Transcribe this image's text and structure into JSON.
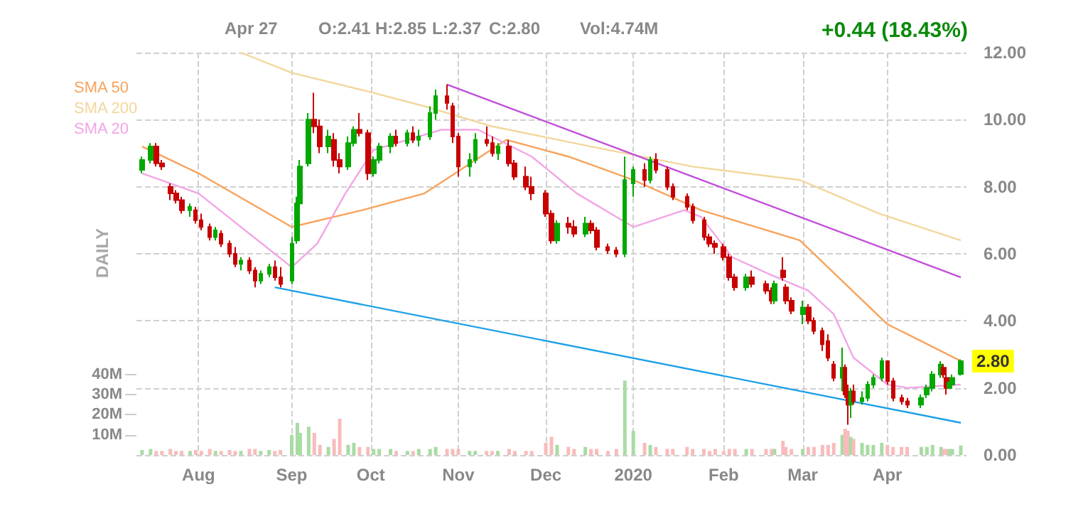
{
  "chart_data": {
    "type": "candlestick",
    "annotations": [
      "Apr 27",
      "O:2.41",
      "H:2.85",
      "L:2.37",
      "C:2.80",
      "Vol:4.74M",
      "+0.44 (18.43%)",
      "DAILY",
      "2.80"
    ],
    "x": [
      "2019-07-12",
      "2019-07-15",
      "2019-07-17",
      "2019-07-19",
      "2019-07-22",
      "2019-07-24",
      "2019-07-26",
      "2019-07-29",
      "2019-07-31",
      "2019-08-02",
      "2019-08-05",
      "2019-08-07",
      "2019-08-09",
      "2019-08-12",
      "2019-08-14",
      "2019-08-16",
      "2019-08-19",
      "2019-08-21",
      "2019-08-23",
      "2019-08-26",
      "2019-08-28",
      "2019-08-30",
      "2019-09-03",
      "2019-09-05",
      "2019-09-06",
      "2019-09-09",
      "2019-09-11",
      "2019-09-13",
      "2019-09-16",
      "2019-09-18",
      "2019-09-20",
      "2019-09-23",
      "2019-09-25",
      "2019-09-27",
      "2019-09-30",
      "2019-10-02",
      "2019-10-04",
      "2019-10-08",
      "2019-10-10",
      "2019-10-14",
      "2019-10-16",
      "2019-10-18",
      "2019-10-22",
      "2019-10-24",
      "2019-10-28",
      "2019-10-30",
      "2019-11-01",
      "2019-11-05",
      "2019-11-07",
      "2019-11-11",
      "2019-11-13",
      "2019-11-15",
      "2019-11-19",
      "2019-11-21",
      "2019-11-25",
      "2019-11-27",
      "2019-12-02",
      "2019-12-04",
      "2019-12-06",
      "2019-12-10",
      "2019-12-12",
      "2019-12-16",
      "2019-12-18",
      "2019-12-20",
      "2019-12-24",
      "2019-12-27",
      "2019-12-30",
      "2020-01-02",
      "2020-01-06",
      "2020-01-08",
      "2020-01-10",
      "2020-01-14",
      "2020-01-16",
      "2020-01-21",
      "2020-01-23",
      "2020-01-27",
      "2020-01-29",
      "2020-01-31",
      "2020-02-03",
      "2020-02-05",
      "2020-02-07",
      "2020-02-11",
      "2020-02-13",
      "2020-02-18",
      "2020-02-20",
      "2020-02-21",
      "2020-02-24",
      "2020-02-25",
      "2020-02-27",
      "2020-03-02",
      "2020-03-04",
      "2020-03-06",
      "2020-03-09",
      "2020-03-11",
      "2020-03-13",
      "2020-03-16",
      "2020-03-17",
      "2020-03-18",
      "2020-03-19",
      "2020-03-20",
      "2020-03-23",
      "2020-03-25",
      "2020-03-27",
      "2020-03-30",
      "2020-04-01",
      "2020-04-03",
      "2020-04-06",
      "2020-04-08",
      "2020-04-13",
      "2020-04-15",
      "2020-04-17",
      "2020-04-20",
      "2020-04-21",
      "2020-04-22",
      "2020-04-23",
      "2020-04-24",
      "2020-04-27"
    ],
    "ohlc": [
      [
        8.5,
        8.9,
        8.4,
        8.8
      ],
      [
        8.8,
        9.3,
        8.7,
        9.2
      ],
      [
        9.2,
        9.3,
        8.6,
        8.7
      ],
      [
        8.7,
        8.8,
        8.5,
        8.6
      ],
      [
        8.0,
        8.1,
        7.6,
        7.8
      ],
      [
        7.8,
        7.9,
        7.5,
        7.6
      ],
      [
        7.6,
        7.7,
        7.2,
        7.3
      ],
      [
        7.3,
        7.5,
        7.1,
        7.4
      ],
      [
        7.3,
        7.4,
        6.9,
        7.0
      ],
      [
        7.0,
        7.2,
        6.7,
        6.8
      ],
      [
        6.8,
        6.9,
        6.4,
        6.5
      ],
      [
        6.5,
        6.8,
        6.4,
        6.7
      ],
      [
        6.6,
        6.7,
        6.2,
        6.3
      ],
      [
        6.3,
        6.4,
        5.9,
        6.0
      ],
      [
        6.0,
        6.2,
        5.6,
        5.7
      ],
      [
        5.7,
        5.9,
        5.5,
        5.8
      ],
      [
        5.8,
        5.9,
        5.4,
        5.5
      ],
      [
        5.5,
        5.6,
        5.0,
        5.2
      ],
      [
        5.2,
        5.5,
        5.1,
        5.4
      ],
      [
        5.4,
        5.7,
        5.3,
        5.6
      ],
      [
        5.6,
        5.8,
        5.2,
        5.3
      ],
      [
        5.3,
        5.6,
        5.0,
        5.1
      ],
      [
        5.2,
        6.5,
        5.1,
        6.3
      ],
      [
        6.4,
        7.7,
        6.3,
        7.5
      ],
      [
        7.5,
        8.8,
        7.4,
        8.6
      ],
      [
        8.7,
        10.2,
        8.6,
        10.0
      ],
      [
        10.0,
        10.8,
        9.6,
        9.8
      ],
      [
        9.8,
        10.0,
        9.0,
        9.2
      ],
      [
        9.2,
        9.7,
        9.0,
        9.5
      ],
      [
        9.4,
        9.6,
        8.6,
        8.8
      ],
      [
        8.8,
        9.0,
        8.4,
        8.6
      ],
      [
        8.6,
        9.5,
        8.5,
        9.3
      ],
      [
        9.3,
        9.8,
        9.2,
        9.7
      ],
      [
        9.7,
        10.2,
        9.5,
        9.6
      ],
      [
        9.6,
        9.7,
        8.2,
        8.4
      ],
      [
        8.4,
        8.9,
        8.3,
        8.8
      ],
      [
        8.8,
        9.3,
        8.7,
        9.2
      ],
      [
        9.2,
        9.6,
        9.0,
        9.5
      ],
      [
        9.5,
        9.7,
        9.2,
        9.3
      ],
      [
        9.3,
        9.7,
        9.2,
        9.6
      ],
      [
        9.6,
        9.8,
        9.3,
        9.4
      ],
      [
        9.4,
        9.7,
        9.2,
        9.5
      ],
      [
        9.5,
        10.4,
        9.4,
        10.2
      ],
      [
        10.2,
        10.9,
        10.0,
        10.7
      ],
      [
        10.7,
        11.05,
        10.3,
        10.5
      ],
      [
        10.4,
        10.5,
        9.3,
        9.5
      ],
      [
        9.5,
        9.6,
        8.3,
        8.6
      ],
      [
        8.6,
        9.0,
        8.3,
        8.8
      ],
      [
        8.8,
        9.6,
        8.7,
        9.4
      ],
      [
        9.4,
        9.8,
        9.2,
        9.3
      ],
      [
        9.3,
        9.5,
        8.9,
        9.0
      ],
      [
        9.0,
        9.3,
        8.8,
        9.2
      ],
      [
        9.2,
        9.4,
        8.6,
        8.7
      ],
      [
        8.7,
        8.8,
        8.2,
        8.3
      ],
      [
        8.3,
        8.6,
        7.9,
        8.0
      ],
      [
        8.0,
        8.3,
        7.6,
        7.8
      ],
      [
        7.8,
        7.9,
        7.1,
        7.2
      ],
      [
        7.2,
        7.3,
        6.3,
        6.4
      ],
      [
        6.4,
        7.0,
        6.3,
        6.9
      ],
      [
        6.9,
        7.1,
        6.6,
        6.8
      ],
      [
        6.8,
        7.0,
        6.5,
        6.6
      ],
      [
        6.6,
        7.1,
        6.5,
        6.9
      ],
      [
        6.9,
        7.0,
        6.6,
        6.7
      ],
      [
        6.7,
        6.8,
        6.1,
        6.2
      ],
      [
        6.2,
        6.3,
        6.0,
        6.1
      ],
      [
        6.1,
        6.2,
        5.9,
        6.0
      ],
      [
        6.0,
        8.9,
        5.9,
        8.2
      ],
      [
        8.1,
        8.6,
        7.7,
        8.5
      ],
      [
        8.5,
        8.7,
        8.0,
        8.2
      ],
      [
        8.2,
        8.9,
        8.1,
        8.8
      ],
      [
        8.8,
        9.0,
        8.4,
        8.5
      ],
      [
        8.5,
        8.6,
        7.9,
        8.0
      ],
      [
        8.0,
        8.1,
        7.6,
        7.7
      ],
      [
        7.7,
        7.8,
        7.3,
        7.4
      ],
      [
        7.4,
        7.5,
        6.9,
        7.0
      ],
      [
        7.0,
        7.1,
        6.4,
        6.5
      ],
      [
        6.5,
        6.6,
        6.2,
        6.3
      ],
      [
        6.3,
        6.4,
        6.0,
        6.2
      ],
      [
        6.2,
        6.3,
        5.8,
        5.9
      ],
      [
        5.9,
        6.0,
        5.2,
        5.3
      ],
      [
        5.3,
        5.4,
        4.9,
        5.0
      ],
      [
        5.0,
        5.4,
        4.9,
        5.3
      ],
      [
        5.3,
        5.5,
        5.0,
        5.1
      ],
      [
        5.1,
        5.2,
        4.8,
        4.9
      ],
      [
        4.9,
        5.0,
        4.5,
        4.6
      ],
      [
        4.6,
        5.2,
        4.5,
        5.1
      ],
      [
        5.5,
        5.9,
        5.2,
        5.3
      ],
      [
        5.0,
        5.1,
        4.5,
        4.6
      ],
      [
        4.6,
        4.7,
        4.2,
        4.3
      ],
      [
        4.2,
        4.6,
        3.9,
        4.4
      ],
      [
        4.4,
        4.5,
        3.9,
        4.0
      ],
      [
        4.0,
        4.1,
        3.6,
        3.7
      ],
      [
        3.7,
        3.8,
        3.1,
        3.3
      ],
      [
        3.4,
        3.6,
        2.8,
        2.9
      ],
      [
        2.7,
        2.8,
        2.2,
        2.3
      ],
      [
        2.3,
        3.2,
        1.9,
        2.6
      ],
      [
        2.6,
        2.7,
        1.7,
        1.8
      ],
      [
        1.8,
        2.1,
        0.9,
        1.5
      ],
      [
        1.5,
        2.0,
        1.1,
        1.9
      ],
      [
        1.9,
        2.1,
        1.5,
        1.6
      ],
      [
        1.6,
        1.9,
        1.5,
        1.7
      ],
      [
        1.7,
        2.2,
        1.6,
        2.1
      ],
      [
        2.1,
        2.4,
        2.0,
        2.3
      ],
      [
        2.3,
        2.9,
        2.2,
        2.8
      ],
      [
        2.8,
        2.8,
        2.1,
        2.2
      ],
      [
        2.2,
        2.3,
        1.6,
        1.7
      ],
      [
        1.7,
        1.8,
        1.5,
        1.6
      ],
      [
        1.6,
        1.7,
        1.4,
        1.5
      ],
      [
        1.5,
        1.8,
        1.4,
        1.7
      ],
      [
        1.8,
        2.1,
        1.7,
        2.0
      ],
      [
        2.0,
        2.5,
        1.9,
        2.4
      ],
      [
        2.4,
        2.8,
        2.3,
        2.7
      ],
      [
        2.6,
        2.7,
        2.3,
        2.4
      ],
      [
        2.3,
        2.4,
        1.8,
        2.0
      ],
      [
        2.0,
        2.2,
        2.0,
        2.15
      ],
      [
        2.1,
        2.4,
        2.1,
        2.3
      ],
      [
        2.41,
        2.85,
        2.37,
        2.8
      ]
    ],
    "colors": [
      "#00a800",
      "#00a800",
      "#c80000",
      "#c80000",
      "#c80000",
      "#c80000",
      "#c80000",
      "#00a800",
      "#c80000",
      "#c80000",
      "#c80000",
      "#00a800",
      "#c80000",
      "#c80000",
      "#c80000",
      "#00a800",
      "#c80000",
      "#c80000",
      "#00a800",
      "#00a800",
      "#c80000",
      "#c80000",
      "#00a800",
      "#00a800",
      "#00a800",
      "#00a800",
      "#c80000",
      "#c80000",
      "#00a800",
      "#c80000",
      "#c80000",
      "#00a800",
      "#00a800",
      "#c80000",
      "#c80000",
      "#00a800",
      "#00a800",
      "#00a800",
      "#c80000",
      "#00a800",
      "#c80000",
      "#00a800",
      "#00a800",
      "#00a800",
      "#c80000",
      "#c80000",
      "#c80000",
      "#00a800",
      "#00a800",
      "#c80000",
      "#c80000",
      "#00a800",
      "#c80000",
      "#c80000",
      "#c80000",
      "#c80000",
      "#c80000",
      "#c80000",
      "#00a800",
      "#c80000",
      "#c80000",
      "#00a800",
      "#c80000",
      "#c80000",
      "#c80000",
      "#c80000",
      "#00a800",
      "#00a800",
      "#c80000",
      "#00a800",
      "#c80000",
      "#c80000",
      "#c80000",
      "#c80000",
      "#c80000",
      "#c80000",
      "#c80000",
      "#c80000",
      "#c80000",
      "#c80000",
      "#c80000",
      "#00a800",
      "#c80000",
      "#c80000",
      "#c80000",
      "#00a800",
      "#c80000",
      "#c80000",
      "#c80000",
      "#00a800",
      "#c80000",
      "#c80000",
      "#c80000",
      "#c80000",
      "#c80000",
      "#00a800",
      "#c80000",
      "#c80000",
      "#00a800",
      "#c80000",
      "#00a800",
      "#00a800",
      "#00a800",
      "#00a800",
      "#c80000",
      "#c80000",
      "#c80000",
      "#c80000",
      "#00a800",
      "#00a800",
      "#00a800",
      "#00a800",
      "#c80000",
      "#c80000",
      "#00a800",
      "#00a800",
      "#00a800"
    ],
    "series": [
      {
        "name": "SMA 50",
        "type": "line",
        "color": "#f7a35c",
        "x": [
          "2019-07-12",
          "2019-08-01",
          "2019-09-03",
          "2019-09-28",
          "2019-10-20",
          "2019-11-18",
          "2019-12-10",
          "2020-01-02",
          "2020-01-26",
          "2020-03-01",
          "2020-04-01",
          "2020-04-27"
        ],
        "values": [
          9.2,
          8.4,
          6.8,
          7.3,
          7.8,
          9.4,
          8.9,
          8.2,
          7.3,
          6.4,
          3.9,
          2.8
        ]
      },
      {
        "name": "SMA 200",
        "type": "line",
        "color": "#f3d69c",
        "x": [
          "2019-08-16",
          "2019-09-03",
          "2019-10-02",
          "2019-10-20",
          "2019-11-13",
          "2019-12-18",
          "2020-01-23",
          "2020-03-01",
          "2020-03-29",
          "2020-04-27"
        ],
        "values": [
          12.0,
          11.4,
          10.8,
          10.4,
          9.8,
          9.2,
          8.6,
          8.2,
          7.2,
          6.4
        ]
      },
      {
        "name": "SMA 20",
        "type": "line",
        "color": "#f2a6e6",
        "x": [
          "2019-07-12",
          "2019-08-01",
          "2019-08-28",
          "2019-09-03",
          "2019-09-12",
          "2019-09-22",
          "2019-10-02",
          "2019-10-26",
          "2019-11-08",
          "2019-11-27",
          "2019-12-13",
          "2020-01-02",
          "2020-01-20",
          "2020-01-26",
          "2020-02-06",
          "2020-02-19",
          "2020-03-04",
          "2020-03-13",
          "2020-03-20",
          "2020-04-01",
          "2020-04-08",
          "2020-04-27"
        ],
        "values": [
          8.4,
          7.8,
          6.0,
          5.6,
          6.3,
          7.8,
          9.1,
          9.7,
          9.7,
          8.9,
          7.8,
          6.8,
          7.3,
          7.1,
          5.9,
          5.4,
          4.9,
          4.2,
          2.9,
          2.1,
          2.0,
          2.1
        ]
      },
      {
        "type": "line",
        "color": "#c04fd8",
        "x": [
          "2019-10-28",
          "2020-04-27"
        ],
        "values": [
          11.05,
          5.3
        ]
      },
      {
        "type": "line",
        "color": "#1ea0e6",
        "x": [
          "2019-08-28",
          "2020-04-27"
        ],
        "values": [
          5.0,
          0.96
        ]
      },
      {
        "type": "bar",
        "axis": "y2",
        "x": [
          "2019-07-12",
          "2019-07-15",
          "2019-07-17",
          "2019-07-19",
          "2019-07-22",
          "2019-07-24",
          "2019-07-26",
          "2019-07-29",
          "2019-07-31",
          "2019-08-02",
          "2019-08-05",
          "2019-08-07",
          "2019-08-09",
          "2019-08-12",
          "2019-08-14",
          "2019-08-16",
          "2019-08-19",
          "2019-08-21",
          "2019-08-23",
          "2019-08-26",
          "2019-08-28",
          "2019-08-30",
          "2019-09-03",
          "2019-09-05",
          "2019-09-06",
          "2019-09-09",
          "2019-09-11",
          "2019-09-13",
          "2019-09-16",
          "2019-09-18",
          "2019-09-20",
          "2019-09-23",
          "2019-09-25",
          "2019-09-27",
          "2019-09-30",
          "2019-10-02",
          "2019-10-04",
          "2019-10-08",
          "2019-10-10",
          "2019-10-14",
          "2019-10-16",
          "2019-10-18",
          "2019-10-22",
          "2019-10-24",
          "2019-10-28",
          "2019-10-30",
          "2019-11-01",
          "2019-11-05",
          "2019-11-07",
          "2019-11-11",
          "2019-11-13",
          "2019-11-15",
          "2019-11-19",
          "2019-11-21",
          "2019-11-25",
          "2019-11-27",
          "2019-12-02",
          "2019-12-04",
          "2019-12-06",
          "2019-12-10",
          "2019-12-12",
          "2019-12-16",
          "2019-12-18",
          "2019-12-20",
          "2019-12-24",
          "2019-12-27",
          "2019-12-30",
          "2020-01-02",
          "2020-01-06",
          "2020-01-08",
          "2020-01-10",
          "2020-01-14",
          "2020-01-16",
          "2020-01-21",
          "2020-01-23",
          "2020-01-27",
          "2020-01-29",
          "2020-01-31",
          "2020-02-03",
          "2020-02-05",
          "2020-02-07",
          "2020-02-11",
          "2020-02-13",
          "2020-02-18",
          "2020-02-20",
          "2020-02-21",
          "2020-02-24",
          "2020-02-25",
          "2020-02-27",
          "2020-03-02",
          "2020-03-04",
          "2020-03-06",
          "2020-03-09",
          "2020-03-11",
          "2020-03-13",
          "2020-03-16",
          "2020-03-17",
          "2020-03-18",
          "2020-03-19",
          "2020-03-20",
          "2020-03-23",
          "2020-03-25",
          "2020-03-27",
          "2020-03-30",
          "2020-04-01",
          "2020-04-03",
          "2020-04-06",
          "2020-04-08",
          "2020-04-13",
          "2020-04-15",
          "2020-04-17",
          "2020-04-20",
          "2020-04-21",
          "2020-04-22",
          "2020-04-23",
          "2020-04-24",
          "2020-04-27"
        ],
        "values": [
          2.5,
          3,
          2,
          2,
          3,
          2,
          2,
          2,
          2.5,
          2,
          3,
          2,
          2,
          2.5,
          2,
          2,
          3,
          3,
          2,
          2.5,
          2,
          2.5,
          10,
          16,
          11,
          14,
          11,
          5,
          4,
          8,
          18,
          5,
          6,
          4,
          4,
          3,
          3,
          3,
          2,
          2,
          2,
          3,
          3,
          4,
          3,
          3,
          3,
          2,
          2,
          2,
          2,
          2,
          3,
          2,
          2,
          2,
          6,
          9,
          5,
          4,
          3,
          4,
          3,
          3,
          2,
          3,
          37,
          12,
          6,
          5,
          4,
          3,
          3,
          4,
          3,
          3,
          2,
          3,
          2,
          3,
          3,
          3,
          3,
          3,
          3,
          3,
          7,
          4,
          3,
          3,
          4,
          4,
          5,
          5,
          6,
          10,
          13,
          12,
          9,
          8,
          6,
          5,
          5,
          6,
          5,
          4,
          4,
          4,
          4,
          4,
          5,
          4,
          3,
          3,
          3,
          3,
          4.7
        ],
        "colors": [
          "#a8dca4",
          "#a8dca4",
          "#f8bcbc",
          "#f8bcbc",
          "#f8bcbc",
          "#f8bcbc",
          "#f8bcbc",
          "#a8dca4",
          "#f8bcbc",
          "#f8bcbc",
          "#f8bcbc",
          "#a8dca4",
          "#f8bcbc",
          "#f8bcbc",
          "#f8bcbc",
          "#a8dca4",
          "#f8bcbc",
          "#f8bcbc",
          "#a8dca4",
          "#a8dca4",
          "#f8bcbc",
          "#f8bcbc",
          "#a8dca4",
          "#a8dca4",
          "#a8dca4",
          "#a8dca4",
          "#f8bcbc",
          "#f8bcbc",
          "#a8dca4",
          "#f8bcbc",
          "#f8bcbc",
          "#a8dca4",
          "#a8dca4",
          "#f8bcbc",
          "#f8bcbc",
          "#a8dca4",
          "#a8dca4",
          "#a8dca4",
          "#f8bcbc",
          "#a8dca4",
          "#f8bcbc",
          "#a8dca4",
          "#a8dca4",
          "#a8dca4",
          "#f8bcbc",
          "#f8bcbc",
          "#f8bcbc",
          "#a8dca4",
          "#a8dca4",
          "#f8bcbc",
          "#f8bcbc",
          "#a8dca4",
          "#f8bcbc",
          "#f8bcbc",
          "#f8bcbc",
          "#f8bcbc",
          "#f8bcbc",
          "#f8bcbc",
          "#a8dca4",
          "#f8bcbc",
          "#f8bcbc",
          "#a8dca4",
          "#f8bcbc",
          "#f8bcbc",
          "#f8bcbc",
          "#f8bcbc",
          "#a8dca4",
          "#a8dca4",
          "#f8bcbc",
          "#a8dca4",
          "#f8bcbc",
          "#f8bcbc",
          "#f8bcbc",
          "#f8bcbc",
          "#f8bcbc",
          "#f8bcbc",
          "#f8bcbc",
          "#f8bcbc",
          "#f8bcbc",
          "#f8bcbc",
          "#f8bcbc",
          "#a8dca4",
          "#f8bcbc",
          "#f8bcbc",
          "#f8bcbc",
          "#a8dca4",
          "#f8bcbc",
          "#f8bcbc",
          "#f8bcbc",
          "#a8dca4",
          "#f8bcbc",
          "#f8bcbc",
          "#f8bcbc",
          "#f8bcbc",
          "#f8bcbc",
          "#a8dca4",
          "#f8bcbc",
          "#f8bcbc",
          "#a8dca4",
          "#f8bcbc",
          "#a8dca4",
          "#a8dca4",
          "#a8dca4",
          "#a8dca4",
          "#f8bcbc",
          "#f8bcbc",
          "#f8bcbc",
          "#f8bcbc",
          "#a8dca4",
          "#a8dca4",
          "#a8dca4",
          "#a8dca4",
          "#f8bcbc",
          "#f8bcbc",
          "#a8dca4",
          "#a8dca4",
          "#a8dca4"
        ]
      }
    ],
    "xlim": [
      "2019-07-10",
      "2020-04-29"
    ],
    "xticks": [
      {
        "value": "2019-08-01",
        "label": "Aug"
      },
      {
        "value": "2019-09-03",
        "label": "Sep"
      },
      {
        "value": "2019-10-01",
        "label": "Oct"
      },
      {
        "value": "2019-11-01",
        "label": "Nov"
      },
      {
        "value": "2019-12-02",
        "label": "Dec"
      },
      {
        "value": "2020-01-02",
        "label": "2020"
      },
      {
        "value": "2020-02-03",
        "label": "Feb"
      },
      {
        "value": "2020-03-02",
        "label": "Mar"
      },
      {
        "value": "2020-04-01",
        "label": "Apr"
      }
    ],
    "ylim": [
      0,
      12
    ],
    "yticks": [
      {
        "value": 0,
        "label": "0.00"
      },
      {
        "value": 2,
        "label": "2.00"
      },
      {
        "value": 4,
        "label": "4.00"
      },
      {
        "value": 6,
        "label": "6.00"
      },
      {
        "value": 8,
        "label": "8.00"
      },
      {
        "value": 10,
        "label": "10.00"
      },
      {
        "value": 12,
        "label": "12.00"
      }
    ],
    "y2lim": [
      0,
      200
    ],
    "y2ticks": [
      {
        "value": 10,
        "label": "10M"
      },
      {
        "value": 20,
        "label": "20M"
      },
      {
        "value": 30,
        "label": "30M"
      },
      {
        "value": 40,
        "label": "40M"
      }
    ],
    "grid": true,
    "legend": "top left"
  }
}
